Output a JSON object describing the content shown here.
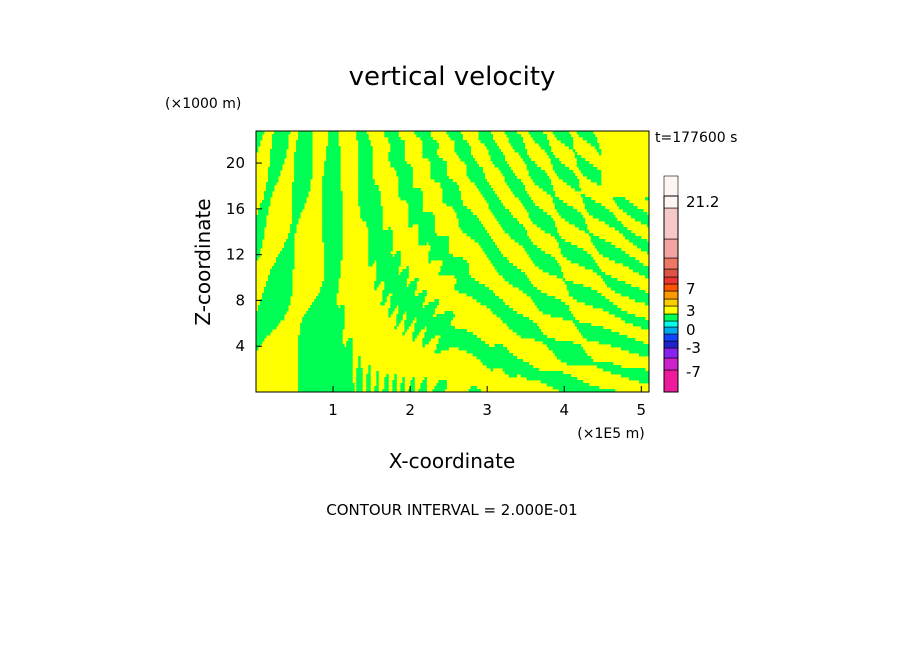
{
  "chart_data": {
    "type": "heatmap",
    "title": "vertical velocity",
    "xlabel": "X-coordinate",
    "ylabel": "Z-coordinate",
    "x_unit": "(×1E5 m)",
    "y_unit": "(×1000 m)",
    "time_label": "t=177600 s",
    "footer": "CONTOUR INTERVAL = 2.000E-01",
    "xlim": [
      0,
      5.1
    ],
    "ylim": [
      0,
      22.8
    ],
    "x_ticks": [
      1,
      2,
      3,
      4,
      5
    ],
    "y_ticks": [
      4,
      8,
      12,
      16,
      20
    ],
    "colorbar": {
      "labels": [
        "21.2",
        "7",
        "3",
        "0",
        "-3",
        "-7"
      ],
      "levels": [
        -7,
        -3,
        0,
        3,
        7,
        21.2
      ],
      "segments": [
        {
          "value": -9,
          "color": "#ee1b9b"
        },
        {
          "value": -7,
          "color": "#cc22cc"
        },
        {
          "value": -5,
          "color": "#8822ee"
        },
        {
          "value": -4,
          "color": "#2222cc"
        },
        {
          "value": -3,
          "color": "#1144ff"
        },
        {
          "value": -2,
          "color": "#00aaee"
        },
        {
          "value": -1,
          "color": "#00ffee"
        },
        {
          "value": 0,
          "color": "#00ff55"
        },
        {
          "value": 0.2,
          "color": "#ffff00"
        },
        {
          "value": 1,
          "color": "#ffcc00"
        },
        {
          "value": 2,
          "color": "#ff9900"
        },
        {
          "value": 3,
          "color": "#ff5500"
        },
        {
          "value": 4,
          "color": "#ee3333"
        },
        {
          "value": 5,
          "color": "#dd5544"
        },
        {
          "value": 7,
          "color": "#ee7766"
        },
        {
          "value": 10,
          "color": "#f4a3a3"
        },
        {
          "value": 14,
          "color": "#f7c8c8"
        },
        {
          "value": 21.2,
          "color": "#fff4f4"
        }
      ]
    },
    "field_colors": {
      "positive": "#ffff00",
      "negative": "#00ff55"
    }
  }
}
